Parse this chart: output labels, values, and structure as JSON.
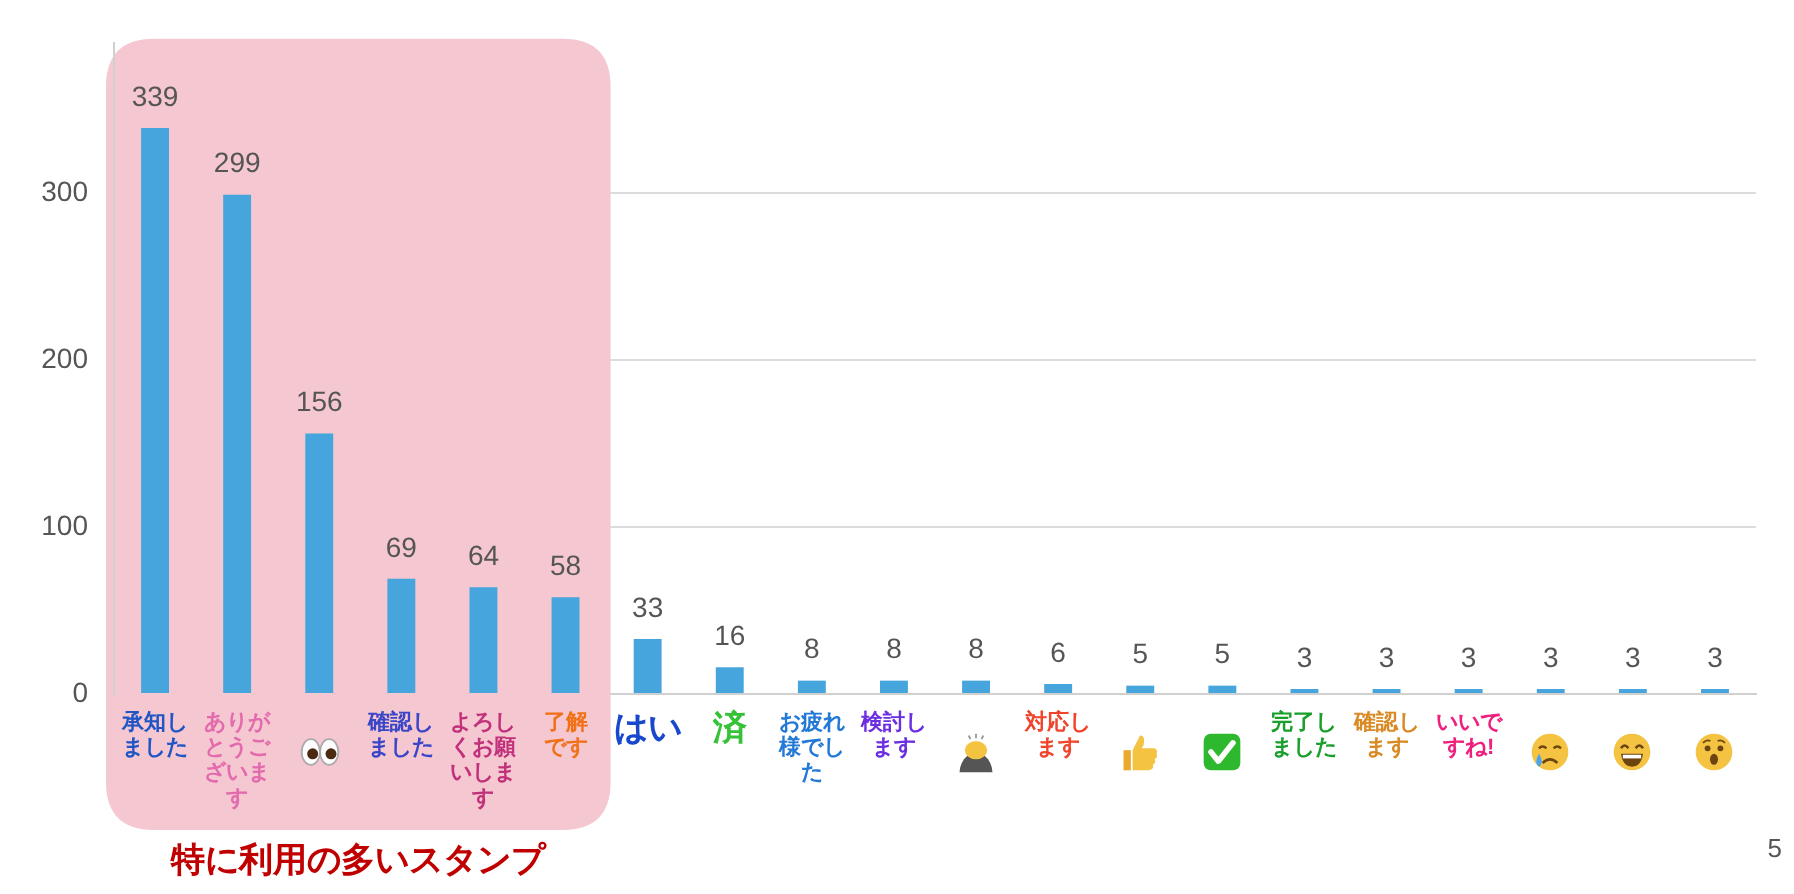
{
  "chart_data": {
    "type": "bar",
    "categories": [
      "承知しました",
      "ありがとうございます",
      null,
      "確認しました",
      "よろしくお願いします",
      "了解です",
      "はい",
      "済",
      "お疲れ様でした",
      "検討します",
      null,
      "対応します",
      null,
      null,
      "完了しました",
      "確認します",
      "いいですね!",
      null,
      null,
      null
    ],
    "values": [
      339,
      299,
      156,
      69,
      64,
      58,
      33,
      16,
      8,
      8,
      8,
      6,
      5,
      5,
      3,
      3,
      3,
      3,
      3,
      3
    ],
    "color": "#45a5dc",
    "ylim": [
      0,
      390
    ],
    "yticks": [
      0,
      100,
      200,
      300
    ],
    "grid": "y",
    "data_labels": true,
    "bands": [
      {
        "axis": "x",
        "from": "承知しました",
        "to": "了解です",
        "label": "特に利用の多いスタンプ",
        "color": "#f5c7d0"
      }
    ],
    "annotations": [
      "5"
    ]
  }
}
